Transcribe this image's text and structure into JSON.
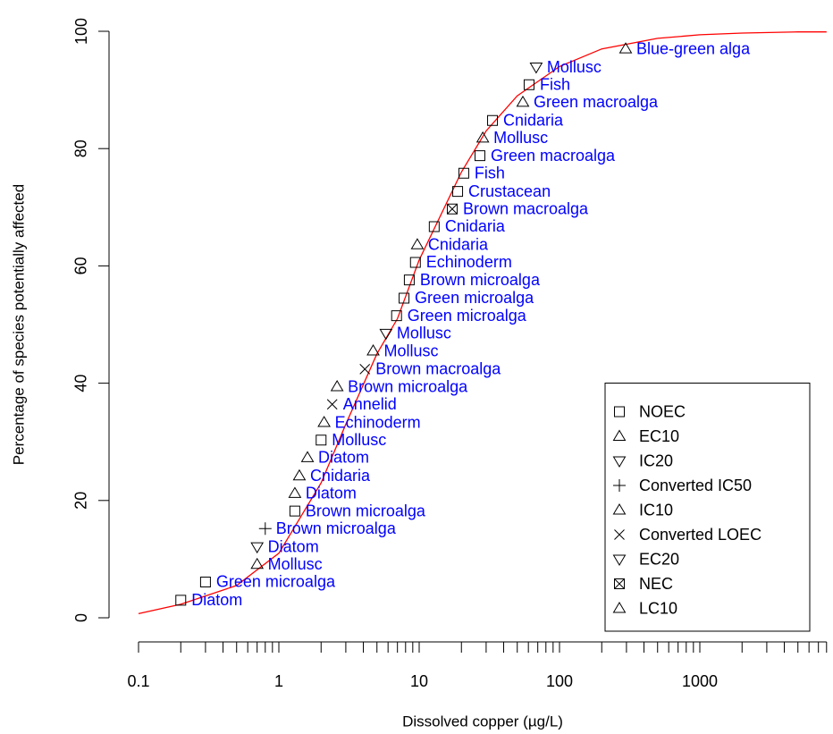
{
  "chart_data": {
    "type": "scatter",
    "x_label": "Dissolved copper (µg/L)",
    "y_label": "Percentage of species potentially affected",
    "x": [
      0.2,
      0.3,
      0.7,
      0.7,
      0.8,
      1.3,
      1.3,
      1.4,
      1.6,
      2.0,
      2.1,
      2.4,
      2.6,
      4.1,
      4.7,
      5.8,
      6.9,
      7.8,
      8.5,
      9.4,
      9.7,
      12.8,
      17.2,
      18.8,
      20.8,
      27.1,
      28.4,
      33.3,
      54.8,
      60.7,
      68.2,
      296
    ],
    "values": [
      3.0,
      6.1,
      9.1,
      12.1,
      15.2,
      18.2,
      21.2,
      24.2,
      27.3,
      30.3,
      33.3,
      36.4,
      39.4,
      42.4,
      45.5,
      48.5,
      51.5,
      54.5,
      57.6,
      60.6,
      63.6,
      66.7,
      69.7,
      72.7,
      75.8,
      78.8,
      81.8,
      84.8,
      87.9,
      90.9,
      93.9,
      97.0
    ],
    "point_labels": [
      "Diatom",
      "Green microalga",
      "Mollusc",
      "Diatom",
      "Brown microalga",
      "Brown microalga",
      "Diatom",
      "Cnidaria",
      "Diatom",
      "Mollusc",
      "Echinoderm",
      "Annelid",
      "Brown microalga",
      "Brown macroalga",
      "Mollusc",
      "Mollusc",
      "Green microalga",
      "Green microalga",
      "Brown microalga",
      "Echinoderm",
      "Cnidaria",
      "Cnidaria",
      "Brown macroalga",
      "Crustacean",
      "Fish",
      "Green macroalga",
      "Mollusc",
      "Cnidaria",
      "Green macroalga",
      "Fish",
      "Mollusc",
      "Blue-green alga"
    ],
    "markers": [
      "square",
      "square",
      "triangle",
      "down-triangle",
      "plus",
      "square",
      "triangle",
      "triangle",
      "triangle",
      "square",
      "triangle",
      "cross",
      "triangle",
      "cross",
      "triangle",
      "down-triangle",
      "square",
      "square",
      "square",
      "square",
      "triangle",
      "square",
      "boxed-cross",
      "square",
      "square",
      "square",
      "triangle",
      "square",
      "triangle",
      "square",
      "down-triangle",
      "triangle"
    ],
    "label_color": "#0000ff",
    "marker_color": "#000000",
    "curve": {
      "color": "#ff0000",
      "x": [
        0.1,
        0.2,
        0.5,
        1,
        2,
        3,
        5,
        7,
        10,
        20,
        30,
        50,
        100,
        200,
        500,
        1000,
        2000,
        5000,
        8000
      ],
      "values": [
        0.7,
        2.3,
        5.5,
        11,
        23,
        33,
        45,
        51,
        61,
        76,
        83,
        89,
        94,
        97,
        98.8,
        99.4,
        99.7,
        99.9,
        99.9
      ]
    },
    "legend": [
      {
        "name": "NOEC",
        "marker": "square"
      },
      {
        "name": "EC10",
        "marker": "triangle"
      },
      {
        "name": "IC20",
        "marker": "down-triangle"
      },
      {
        "name": "Converted IC50",
        "marker": "plus"
      },
      {
        "name": "IC10",
        "marker": "triangle"
      },
      {
        "name": "Converted LOEC",
        "marker": "cross"
      },
      {
        "name": "EC20",
        "marker": "down-triangle"
      },
      {
        "name": "NEC",
        "marker": "boxed-cross"
      },
      {
        "name": "LC10",
        "marker": "triangle"
      }
    ],
    "legend_position": "bottom-right",
    "x_log": true,
    "xlim": [
      0.1,
      8000
    ],
    "xticks": [
      0.1,
      1,
      10,
      100,
      1000
    ],
    "xminorticks": [
      0.2,
      0.3,
      0.4,
      0.5,
      0.6,
      0.7,
      0.8,
      0.9,
      2,
      3,
      4,
      5,
      6,
      7,
      8,
      9,
      20,
      30,
      40,
      50,
      60,
      70,
      80,
      90,
      200,
      300,
      400,
      500,
      600,
      700,
      800,
      900,
      2000,
      3000,
      4000,
      5000,
      6000,
      7000,
      8000
    ],
    "ylim": [
      0,
      100
    ],
    "yticks": [
      0,
      20,
      40,
      60,
      80,
      100
    ]
  }
}
